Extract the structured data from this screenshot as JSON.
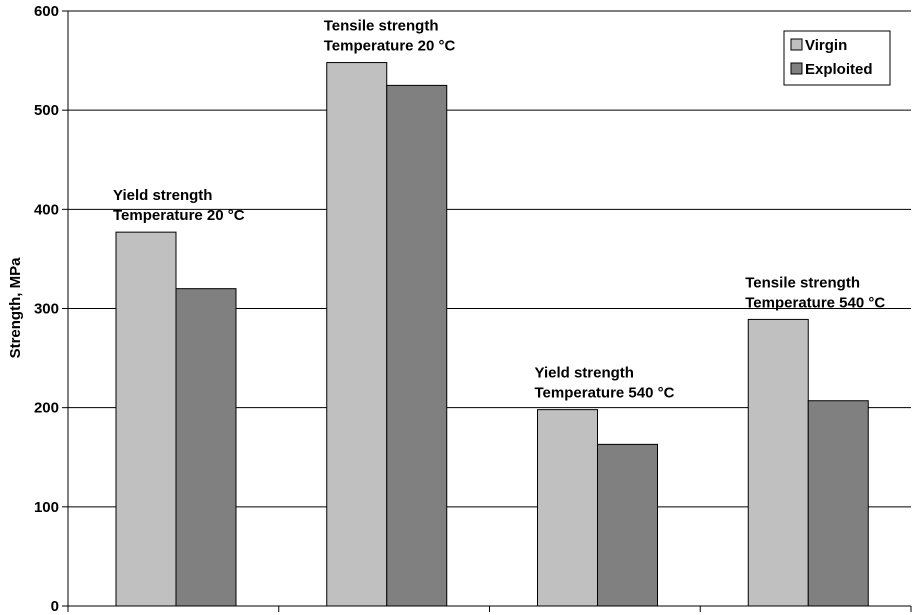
{
  "chart_data": {
    "type": "bar",
    "categories": [
      "",
      "",
      "",
      ""
    ],
    "series": [
      {
        "name": "Virgin",
        "values": [
          377,
          548,
          198,
          289
        ],
        "color": "#c0c0c0"
      },
      {
        "name": "Exploited",
        "values": [
          320,
          525,
          163,
          207
        ],
        "color": "#808080"
      }
    ],
    "title": "",
    "xlabel": "",
    "ylabel": "Strength, MPa",
    "ylim": [
      0,
      600
    ],
    "yticks": [
      0,
      100,
      200,
      300,
      400,
      500,
      600
    ],
    "grid": true,
    "legend": "top-right",
    "annotations": [
      {
        "lines": [
          "Yield strength",
          "Temperature 20 °C"
        ],
        "category": 0
      },
      {
        "lines": [
          "Tensile strength",
          "Temperature 20 °C"
        ],
        "category": 1
      },
      {
        "lines": [
          "Yield strength",
          "Temperature 540 °C"
        ],
        "category": 2
      },
      {
        "lines": [
          "Tensile strength",
          "Temperature 540 °C"
        ],
        "category": 3
      }
    ]
  }
}
